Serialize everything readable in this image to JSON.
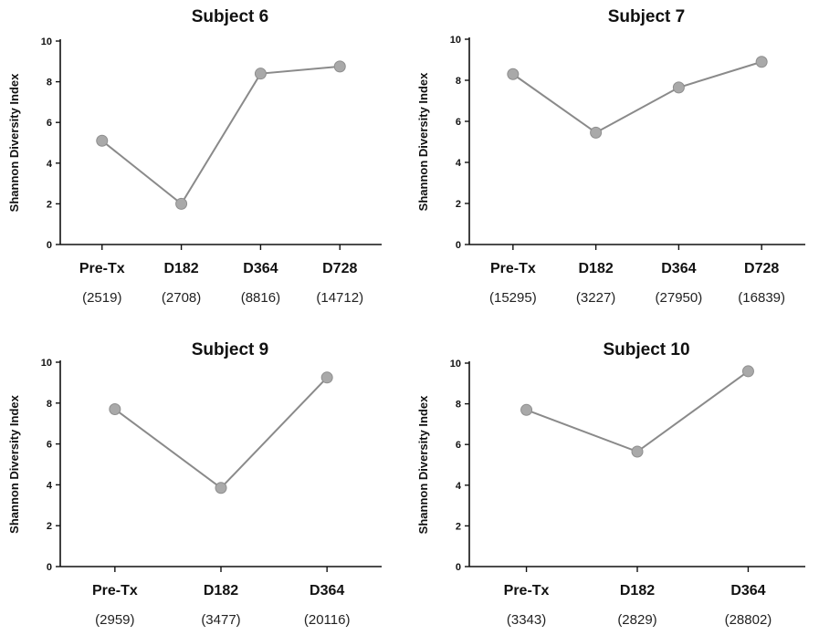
{
  "chart_data": [
    {
      "type": "line",
      "title": "Subject 6",
      "ylabel": "Shannon Diversity Index",
      "ylim": [
        0,
        10
      ],
      "yticks": [
        "0",
        "2",
        "4",
        "6",
        "8",
        "10"
      ],
      "categories": [
        "Pre-Tx",
        "D182",
        "D364",
        "D728"
      ],
      "counts": [
        "(2519)",
        "(2708)",
        "(8816)",
        "(14712)"
      ],
      "values": [
        5.1,
        2.0,
        8.4,
        8.75
      ]
    },
    {
      "type": "line",
      "title": "Subject 7",
      "ylabel": "Shannon Diversity Index",
      "ylim": [
        0,
        10
      ],
      "yticks": [
        "0",
        "2",
        "4",
        "6",
        "8",
        "10"
      ],
      "categories": [
        "Pre-Tx",
        "D182",
        "D364",
        "D728"
      ],
      "counts": [
        "(15295)",
        "(3227)",
        "(27950)",
        "(16839)"
      ],
      "values": [
        8.3,
        5.45,
        7.65,
        8.9
      ]
    },
    {
      "type": "line",
      "title": "Subject 9",
      "ylabel": "Shannon Diversity Index",
      "ylim": [
        0,
        10
      ],
      "yticks": [
        "0",
        "2",
        "4",
        "6",
        "8",
        "10"
      ],
      "categories": [
        "Pre-Tx",
        "D182",
        "D364"
      ],
      "counts": [
        "(2959)",
        "(3477)",
        "(20116)"
      ],
      "values": [
        7.7,
        3.85,
        9.25
      ]
    },
    {
      "type": "line",
      "title": "Subject 10",
      "ylabel": "Shannon Diversity Index",
      "ylim": [
        0,
        10
      ],
      "yticks": [
        "0",
        "2",
        "4",
        "6",
        "8",
        "10"
      ],
      "categories": [
        "Pre-Tx",
        "D182",
        "D364"
      ],
      "counts": [
        "(3343)",
        "(2829)",
        "(28802)"
      ],
      "values": [
        7.7,
        5.65,
        9.6
      ]
    }
  ],
  "colors": {
    "line": "#8a8a8a",
    "marker": "#a9a9a9",
    "text": "#111111"
  }
}
